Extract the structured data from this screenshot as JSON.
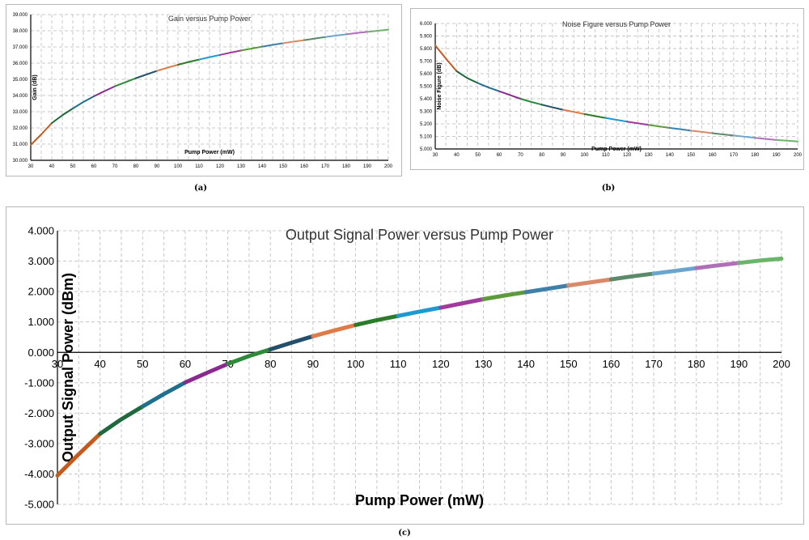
{
  "figure": {
    "captions": [
      "(a)",
      "(b)",
      "(c)"
    ]
  },
  "chart_data": [
    {
      "type": "line",
      "title": "Gain versus Pump Power",
      "xlabel": "Pump Power (mW)",
      "ylabel": "Gain (dB)",
      "x_ticks": [
        "30",
        "40",
        "50",
        "60",
        "70",
        "80",
        "90",
        "100",
        "110",
        "120",
        "130",
        "140",
        "150",
        "160",
        "170",
        "180",
        "190",
        "200"
      ],
      "y_ticks": [
        "30.000",
        "31.000",
        "32.000",
        "33.000",
        "34.000",
        "35.000",
        "36.000",
        "37.000",
        "38.000",
        "39.000"
      ],
      "xlim": [
        30,
        200
      ],
      "ylim": [
        30,
        39
      ],
      "grid": true,
      "series": [
        {
          "x": [
            30,
            35,
            40,
            45,
            50,
            55,
            60,
            65,
            70,
            75,
            80,
            85,
            90,
            95,
            100,
            105,
            110,
            115,
            120,
            125,
            130,
            135,
            140,
            145,
            150,
            155,
            160,
            165,
            170,
            175,
            180,
            185,
            190,
            195,
            200
          ],
          "y": [
            30.95,
            31.6,
            32.3,
            32.78,
            33.2,
            33.6,
            33.95,
            34.27,
            34.57,
            34.82,
            35.07,
            35.3,
            35.52,
            35.72,
            35.9,
            36.07,
            36.22,
            36.37,
            36.51,
            36.65,
            36.78,
            36.9,
            37.02,
            37.13,
            37.23,
            37.33,
            37.42,
            37.52,
            37.61,
            37.7,
            37.78,
            37.86,
            37.93,
            38.0,
            38.07
          ]
        }
      ],
      "segment_colors": [
        "#c55a1c",
        "#1e6a3c",
        "#1f6f8f",
        "#8b2a8e",
        "#2d8a3a",
        "#244f6b",
        "#e07a46",
        "#2a7b2a",
        "#1e9ad0",
        "#a03a9c",
        "#5c9a3c",
        "#3f7fa8",
        "#d88a6a",
        "#5a8a6a",
        "#6aa5d0",
        "#b070b8",
        "#6ab56a"
      ]
    },
    {
      "type": "line",
      "title": "Noise Figure versus Pump Power",
      "xlabel": "Pump Power (mW)",
      "ylabel": "Noise Figure (dB)",
      "x_ticks": [
        "30",
        "40",
        "50",
        "60",
        "70",
        "80",
        "90",
        "100",
        "110",
        "120",
        "130",
        "140",
        "150",
        "160",
        "170",
        "180",
        "190",
        "200"
      ],
      "y_ticks": [
        "5.000",
        "5.100",
        "5.200",
        "5.300",
        "5.400",
        "5.500",
        "5.600",
        "5.700",
        "5.800",
        "5.900",
        "6.000"
      ],
      "xlim": [
        30,
        200
      ],
      "ylim": [
        5.0,
        6.0
      ],
      "grid": true,
      "series": [
        {
          "x": [
            30,
            35,
            40,
            45,
            50,
            55,
            60,
            65,
            70,
            75,
            80,
            85,
            90,
            95,
            100,
            105,
            110,
            115,
            120,
            125,
            130,
            135,
            140,
            145,
            150,
            155,
            160,
            165,
            170,
            175,
            180,
            185,
            190,
            195,
            200
          ],
          "y": [
            5.825,
            5.72,
            5.62,
            5.565,
            5.525,
            5.49,
            5.46,
            5.43,
            5.4,
            5.375,
            5.353,
            5.332,
            5.312,
            5.295,
            5.278,
            5.262,
            5.247,
            5.232,
            5.218,
            5.205,
            5.192,
            5.18,
            5.168,
            5.157,
            5.146,
            5.136,
            5.126,
            5.116,
            5.107,
            5.098,
            5.089,
            5.08,
            5.072,
            5.066,
            5.06
          ]
        }
      ],
      "segment_colors": [
        "#c55a1c",
        "#1e6a3c",
        "#1f6f8f",
        "#8b2a8e",
        "#2d8a3a",
        "#244f6b",
        "#e07a46",
        "#2a7b2a",
        "#1e9ad0",
        "#a03a9c",
        "#5c9a3c",
        "#3f7fa8",
        "#d88a6a",
        "#5a8a6a",
        "#6aa5d0",
        "#b070b8",
        "#6ab56a"
      ]
    },
    {
      "type": "line",
      "title": "Output Signal Power versus Pump Power",
      "xlabel": "Pump Power (mW)",
      "ylabel": "Output Signal Power (dBm)",
      "x_ticks": [
        "30",
        "40",
        "50",
        "60",
        "70",
        "80",
        "90",
        "100",
        "110",
        "120",
        "130",
        "140",
        "150",
        "160",
        "170",
        "180",
        "190",
        "200"
      ],
      "y_ticks": [
        "-5.000",
        "-4.000",
        "-3.000",
        "-2.000",
        "-1.000",
        "0.000",
        "1.000",
        "2.000",
        "3.000",
        "4.000"
      ],
      "xlim": [
        30,
        200
      ],
      "ylim": [
        -5,
        4
      ],
      "grid": true,
      "series": [
        {
          "x": [
            30,
            35,
            40,
            45,
            50,
            55,
            60,
            65,
            70,
            75,
            80,
            85,
            90,
            95,
            100,
            105,
            110,
            115,
            120,
            125,
            130,
            135,
            140,
            145,
            150,
            155,
            160,
            165,
            170,
            175,
            180,
            185,
            190,
            195,
            200
          ],
          "y": [
            -4.05,
            -3.35,
            -2.68,
            -2.2,
            -1.78,
            -1.37,
            -0.99,
            -0.68,
            -0.38,
            -0.12,
            0.1,
            0.32,
            0.53,
            0.72,
            0.9,
            1.06,
            1.2,
            1.34,
            1.47,
            1.61,
            1.75,
            1.87,
            1.98,
            2.09,
            2.2,
            2.3,
            2.4,
            2.5,
            2.59,
            2.68,
            2.77,
            2.86,
            2.94,
            3.02,
            3.08
          ]
        }
      ],
      "segment_colors": [
        "#c55a1c",
        "#1e6a3c",
        "#1f6f8f",
        "#8b2a8e",
        "#2d8a3a",
        "#244f6b",
        "#e07a46",
        "#2a7b2a",
        "#1e9ad0",
        "#a03a9c",
        "#5c9a3c",
        "#3f7fa8",
        "#d88a6a",
        "#5a8a6a",
        "#6aa5d0",
        "#b070b8",
        "#6ab56a"
      ]
    }
  ]
}
